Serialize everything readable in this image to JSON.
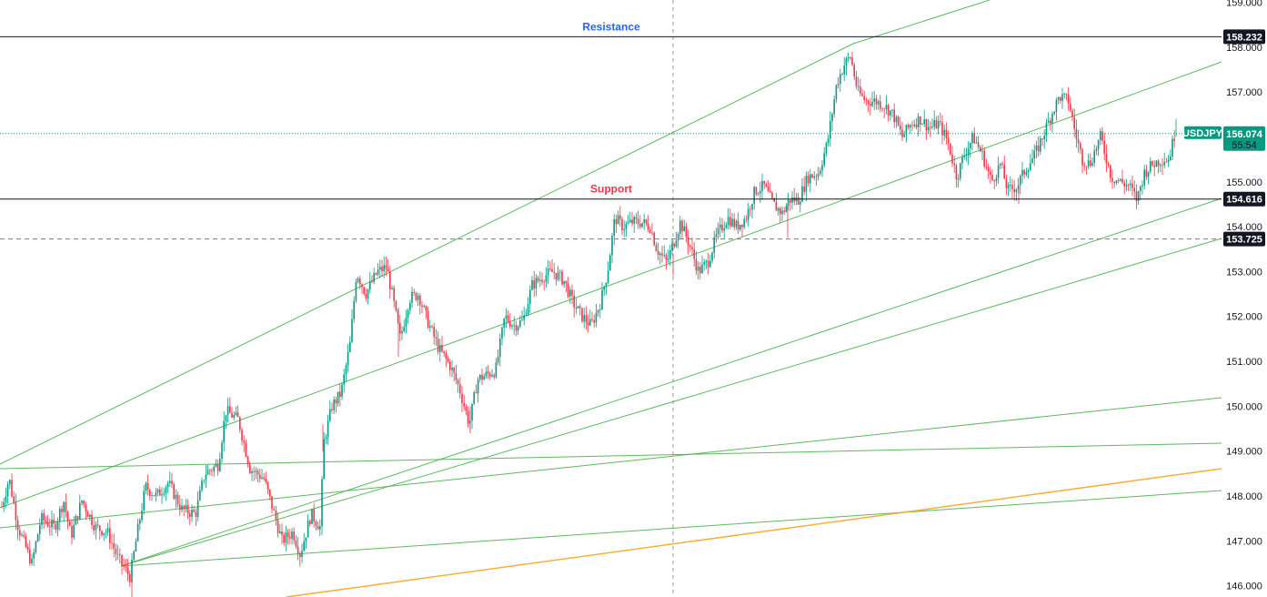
{
  "chart_data": {
    "type": "candlestick",
    "symbol": "USDJPY",
    "last_price": "156.074",
    "countdown": "55:54",
    "y_ticks": [
      "146.000",
      "147.000",
      "148.000",
      "149.000",
      "150.000",
      "151.000",
      "152.000",
      "153.000",
      "154.000",
      "155.000",
      "156.000",
      "157.000",
      "158.000",
      "159.000"
    ],
    "ylim": [
      145.75,
      159.05
    ],
    "horizontal_levels": [
      {
        "label": "Resistance",
        "value": 158.232,
        "tag": "158.232",
        "style": "solid",
        "label_color": "#2962ff"
      },
      {
        "label": "Support",
        "value": 154.616,
        "tag": "154.616",
        "style": "solid",
        "label_color": "#f23645"
      },
      {
        "label": "",
        "value": 153.725,
        "tag": "153.725",
        "style": "dashed",
        "label_color": ""
      }
    ],
    "price_path": [
      [
        0,
        147.6
      ],
      [
        10,
        148.4
      ],
      [
        20,
        147.3
      ],
      [
        35,
        146.5
      ],
      [
        45,
        147.5
      ],
      [
        60,
        147.3
      ],
      [
        70,
        147.9
      ],
      [
        78,
        147.1
      ],
      [
        90,
        147.9
      ],
      [
        105,
        147.3
      ],
      [
        118,
        147.2
      ],
      [
        130,
        146.6
      ],
      [
        143,
        146.2
      ],
      [
        152,
        147.3
      ],
      [
        160,
        148.2
      ],
      [
        172,
        148.0
      ],
      [
        185,
        148.3
      ],
      [
        200,
        147.7
      ],
      [
        215,
        147.6
      ],
      [
        225,
        148.5
      ],
      [
        240,
        148.7
      ],
      [
        248,
        149.9
      ],
      [
        262,
        149.7
      ],
      [
        275,
        148.6
      ],
      [
        290,
        148.4
      ],
      [
        300,
        147.7
      ],
      [
        310,
        147.0
      ],
      [
        322,
        147.2
      ],
      [
        330,
        146.7
      ],
      [
        342,
        147.6
      ],
      [
        352,
        147.3
      ],
      [
        356,
        149.2
      ],
      [
        365,
        150.0
      ],
      [
        375,
        150.3
      ],
      [
        385,
        151.4
      ],
      [
        392,
        153.0
      ],
      [
        402,
        152.5
      ],
      [
        415,
        153.0
      ],
      [
        425,
        153.1
      ],
      [
        432,
        152.4
      ],
      [
        440,
        151.5
      ],
      [
        450,
        152.4
      ],
      [
        460,
        152.5
      ],
      [
        470,
        151.9
      ],
      [
        482,
        151.3
      ],
      [
        495,
        150.9
      ],
      [
        505,
        150.4
      ],
      [
        516,
        149.6
      ],
      [
        525,
        150.6
      ],
      [
        535,
        150.7
      ],
      [
        545,
        150.8
      ],
      [
        555,
        152.0
      ],
      [
        565,
        151.8
      ],
      [
        575,
        151.9
      ],
      [
        585,
        152.7
      ],
      [
        598,
        152.9
      ],
      [
        608,
        153.0
      ],
      [
        620,
        152.8
      ],
      [
        630,
        152.3
      ],
      [
        640,
        152.0
      ],
      [
        650,
        151.8
      ],
      [
        660,
        152.3
      ],
      [
        668,
        153.0
      ],
      [
        676,
        154.2
      ],
      [
        685,
        154.0
      ],
      [
        695,
        154.1
      ],
      [
        705,
        154.1
      ],
      [
        715,
        154.0
      ],
      [
        722,
        153.5
      ],
      [
        733,
        153.2
      ],
      [
        740,
        153.6
      ],
      [
        748,
        154.1
      ],
      [
        758,
        153.6
      ],
      [
        768,
        153.0
      ],
      [
        778,
        153.2
      ],
      [
        788,
        153.8
      ],
      [
        800,
        154.2
      ],
      [
        810,
        154.0
      ],
      [
        820,
        154.2
      ],
      [
        830,
        154.8
      ],
      [
        840,
        154.9
      ],
      [
        850,
        154.5
      ],
      [
        860,
        154.3
      ],
      [
        868,
        154.6
      ],
      [
        878,
        154.6
      ],
      [
        888,
        155.1
      ],
      [
        900,
        155.2
      ],
      [
        910,
        155.9
      ],
      [
        920,
        157.2
      ],
      [
        928,
        157.6
      ],
      [
        935,
        157.8
      ],
      [
        943,
        157.0
      ],
      [
        952,
        156.8
      ],
      [
        962,
        156.8
      ],
      [
        972,
        156.7
      ],
      [
        982,
        156.5
      ],
      [
        992,
        156.0
      ],
      [
        1002,
        156.3
      ],
      [
        1012,
        156.4
      ],
      [
        1022,
        156.2
      ],
      [
        1032,
        156.3
      ],
      [
        1042,
        155.9
      ],
      [
        1052,
        155.1
      ],
      [
        1060,
        155.6
      ],
      [
        1070,
        156.0
      ],
      [
        1080,
        155.6
      ],
      [
        1090,
        155.0
      ],
      [
        1100,
        155.4
      ],
      [
        1108,
        154.8
      ],
      [
        1118,
        154.9
      ],
      [
        1128,
        155.3
      ],
      [
        1138,
        155.6
      ],
      [
        1148,
        156.1
      ],
      [
        1158,
        156.6
      ],
      [
        1165,
        156.9
      ],
      [
        1175,
        156.8
      ],
      [
        1182,
        156.1
      ],
      [
        1190,
        155.5
      ],
      [
        1198,
        155.4
      ],
      [
        1210,
        156.0
      ],
      [
        1222,
        155.1
      ],
      [
        1232,
        155.0
      ],
      [
        1242,
        154.9
      ],
      [
        1250,
        154.6
      ],
      [
        1258,
        155.2
      ],
      [
        1268,
        155.4
      ],
      [
        1278,
        155.5
      ],
      [
        1285,
        155.5
      ],
      [
        1292,
        156.1
      ]
    ],
    "trend_lines": [
      {
        "color": "#4caf50",
        "points": [
          [
            0,
            510
          ],
          [
            938,
            48
          ],
          [
            1088,
            0
          ]
        ]
      },
      {
        "color": "#4caf50",
        "points": [
          [
            0,
            558
          ],
          [
            1343,
            68
          ]
        ]
      },
      {
        "color": "#4caf50",
        "points": [
          [
            133,
            622
          ],
          [
            1343,
            218
          ]
        ]
      },
      {
        "color": "#4caf50",
        "points": [
          [
            133,
            622
          ],
          [
            1343,
            262
          ]
        ]
      },
      {
        "color": "#4caf50",
        "points": [
          [
            0,
            580
          ],
          [
            1343,
            437
          ]
        ]
      },
      {
        "color": "#4caf50",
        "points": [
          [
            0,
            515
          ],
          [
            1343,
            487
          ]
        ]
      },
      {
        "color": "#4caf50",
        "points": [
          [
            133,
            622
          ],
          [
            1343,
            539
          ]
        ]
      },
      {
        "color": "#f5a623",
        "points": [
          [
            315,
            656
          ],
          [
            1343,
            515
          ]
        ]
      }
    ]
  }
}
